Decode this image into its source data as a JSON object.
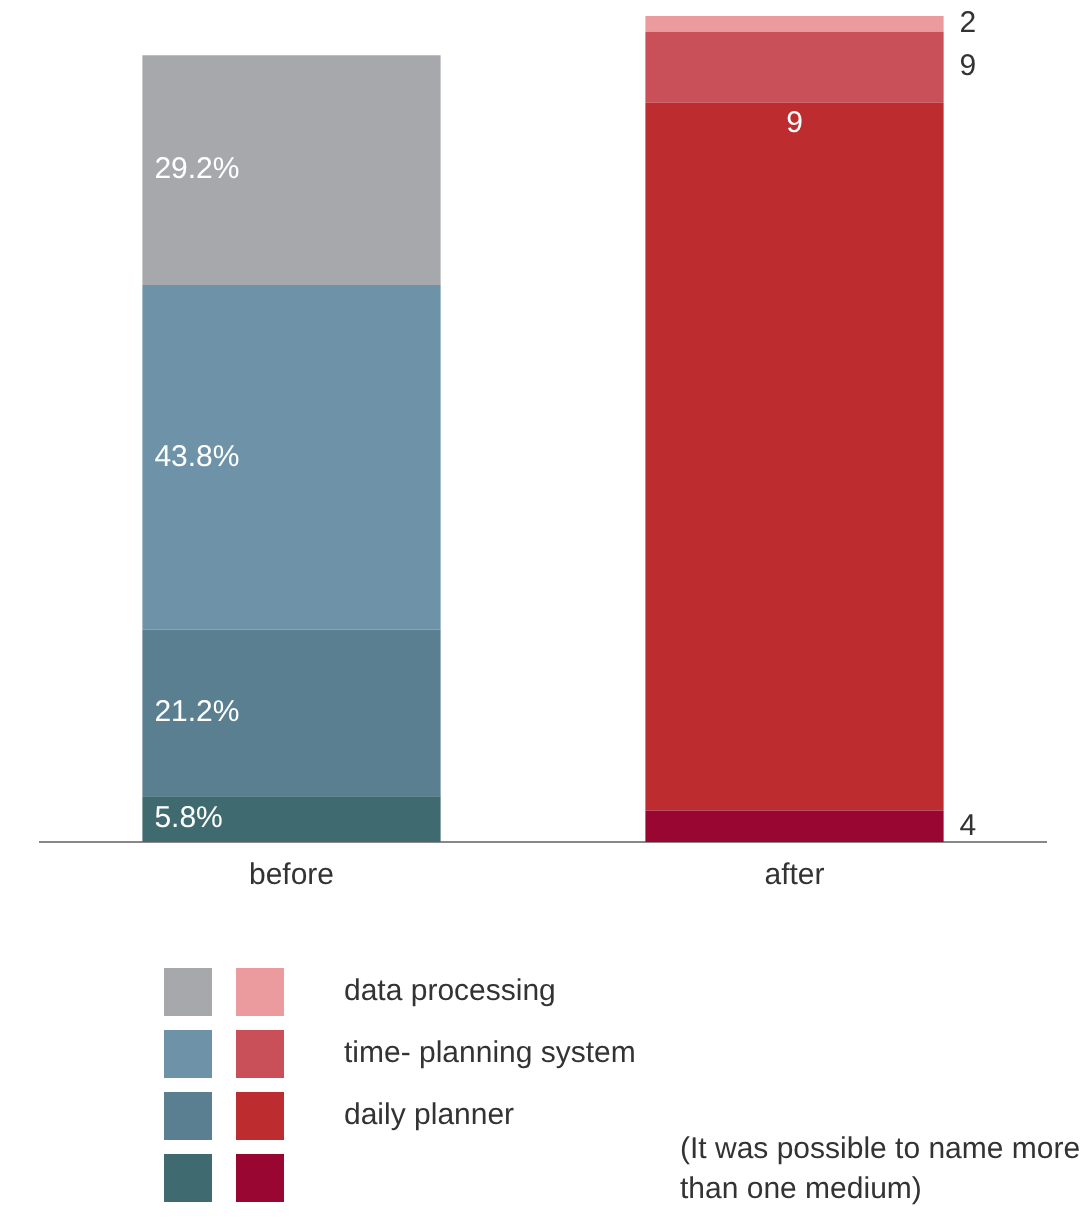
{
  "chart_data": {
    "type": "bar",
    "stacked": true,
    "categories": [
      "before",
      "after"
    ],
    "series": [
      {
        "colors": [
          "#3f6a70",
          "#9a0632"
        ],
        "values": [
          5.8,
          4
        ],
        "value_labels": [
          "5.8%",
          "4"
        ]
      },
      {
        "name": "daily planner",
        "colors": [
          "#5a7f90",
          "#bd2c2e"
        ],
        "values": [
          21.2,
          90
        ],
        "value_labels": [
          "21.2%",
          null
        ]
      },
      {
        "name": "time- planning system",
        "colors": [
          "#6e93a8",
          "#c94f59"
        ],
        "values": [
          43.8,
          9
        ],
        "value_labels": [
          "43.8%",
          "9"
        ]
      },
      {
        "name": "data processing",
        "colors": [
          "#a6a8ab",
          "#eb9a9d"
        ],
        "values": [
          29.2,
          2
        ],
        "value_labels": [
          "29.2%",
          "2"
        ]
      }
    ],
    "legend": "bottom",
    "annotations": [
      {
        "text": "9",
        "x": "after",
        "y": 94
      },
      "(It was possible to name more than one medium)"
    ]
  }
}
